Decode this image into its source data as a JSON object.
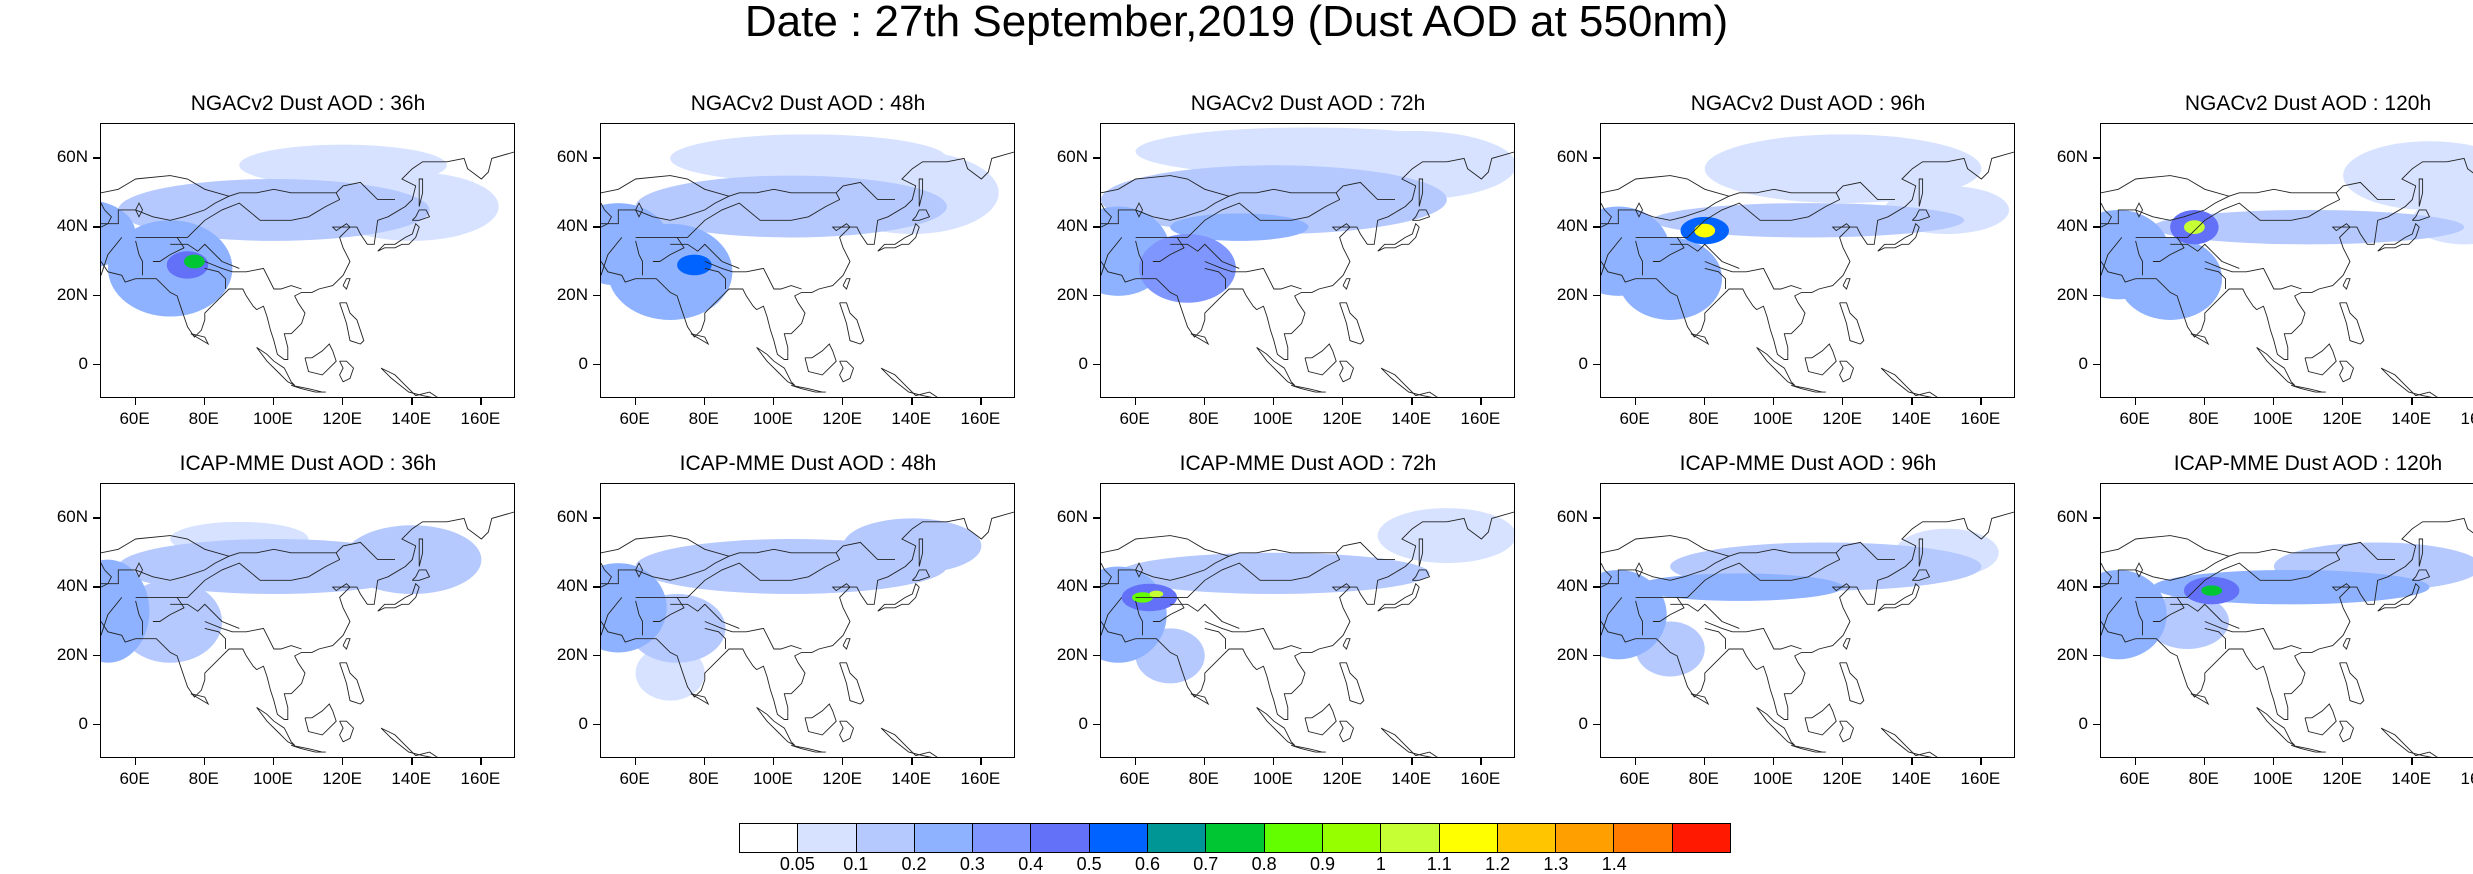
{
  "figure": {
    "title": "Date : 27th September,2019 (Dust AOD at 550nm)"
  },
  "axes": {
    "y_ticks": [
      "60N",
      "40N",
      "20N",
      "0"
    ],
    "y_values": [
      60,
      40,
      20,
      0
    ],
    "x_ticks": [
      "60E",
      "80E",
      "100E",
      "120E",
      "140E",
      "160E"
    ],
    "x_values": [
      60,
      80,
      100,
      120,
      140,
      160
    ],
    "lon_range": [
      50,
      170
    ],
    "lat_range": [
      -10,
      70
    ]
  },
  "panels": [
    {
      "title": "NGACv2 Dust AOD : 36h",
      "model": "NGACv2",
      "lead": "36h",
      "plumes": [
        {
          "lon": 45,
          "lat": 38,
          "rx": 15,
          "ry": 10,
          "v": 0.25
        },
        {
          "lon": 70,
          "lat": 28,
          "rx": 18,
          "ry": 14,
          "v": 0.2
        },
        {
          "lon": 100,
          "lat": 45,
          "rx": 45,
          "ry": 9,
          "v": 0.12
        },
        {
          "lon": 140,
          "lat": 46,
          "rx": 25,
          "ry": 10,
          "v": 0.08
        },
        {
          "lon": 77,
          "lat": 30,
          "rx": 3,
          "ry": 2,
          "v": 0.72
        },
        {
          "lon": 75,
          "lat": 29,
          "rx": 6,
          "ry": 4,
          "v": 0.4
        },
        {
          "lon": 120,
          "lat": 58,
          "rx": 30,
          "ry": 6,
          "v": 0.06
        }
      ]
    },
    {
      "title": "NGACv2 Dust AOD : 48h",
      "model": "NGACv2",
      "lead": "48h",
      "plumes": [
        {
          "lon": 55,
          "lat": 35,
          "rx": 15,
          "ry": 12,
          "v": 0.25
        },
        {
          "lon": 70,
          "lat": 27,
          "rx": 18,
          "ry": 14,
          "v": 0.22
        },
        {
          "lon": 105,
          "lat": 46,
          "rx": 45,
          "ry": 9,
          "v": 0.12
        },
        {
          "lon": 140,
          "lat": 50,
          "rx": 25,
          "ry": 12,
          "v": 0.08
        },
        {
          "lon": 77,
          "lat": 29,
          "rx": 5,
          "ry": 3,
          "v": 0.5
        },
        {
          "lon": 110,
          "lat": 60,
          "rx": 40,
          "ry": 7,
          "v": 0.06
        }
      ]
    },
    {
      "title": "NGACv2 Dust AOD : 72h",
      "model": "NGACv2",
      "lead": "72h",
      "plumes": [
        {
          "lon": 55,
          "lat": 33,
          "rx": 15,
          "ry": 13,
          "v": 0.25
        },
        {
          "lon": 75,
          "lat": 28,
          "rx": 14,
          "ry": 10,
          "v": 0.35
        },
        {
          "lon": 100,
          "lat": 48,
          "rx": 50,
          "ry": 10,
          "v": 0.12
        },
        {
          "lon": 140,
          "lat": 58,
          "rx": 30,
          "ry": 10,
          "v": 0.08
        },
        {
          "lon": 90,
          "lat": 40,
          "rx": 20,
          "ry": 4,
          "v": 0.2
        },
        {
          "lon": 110,
          "lat": 62,
          "rx": 50,
          "ry": 7,
          "v": 0.06
        }
      ]
    },
    {
      "title": "NGACv2 Dust AOD : 96h",
      "model": "NGACv2",
      "lead": "96h",
      "plumes": [
        {
          "lon": 55,
          "lat": 33,
          "rx": 15,
          "ry": 13,
          "v": 0.25
        },
        {
          "lon": 70,
          "lat": 25,
          "rx": 15,
          "ry": 12,
          "v": 0.2
        },
        {
          "lon": 80,
          "lat": 39,
          "rx": 3,
          "ry": 2,
          "v": 1.1
        },
        {
          "lon": 80,
          "lat": 39,
          "rx": 7,
          "ry": 4,
          "v": 0.5
        },
        {
          "lon": 110,
          "lat": 42,
          "rx": 45,
          "ry": 5,
          "v": 0.15
        },
        {
          "lon": 120,
          "lat": 57,
          "rx": 40,
          "ry": 10,
          "v": 0.08
        },
        {
          "lon": 150,
          "lat": 45,
          "rx": 18,
          "ry": 7,
          "v": 0.08
        }
      ]
    },
    {
      "title": "NGACv2 Dust AOD : 120h",
      "model": "NGACv2",
      "lead": "120h",
      "plumes": [
        {
          "lon": 55,
          "lat": 32,
          "rx": 15,
          "ry": 13,
          "v": 0.25
        },
        {
          "lon": 70,
          "lat": 25,
          "rx": 15,
          "ry": 12,
          "v": 0.2
        },
        {
          "lon": 77,
          "lat": 40,
          "rx": 3,
          "ry": 2,
          "v": 1.0
        },
        {
          "lon": 77,
          "lat": 40,
          "rx": 7,
          "ry": 5,
          "v": 0.45
        },
        {
          "lon": 110,
          "lat": 40,
          "rx": 45,
          "ry": 5,
          "v": 0.15
        },
        {
          "lon": 145,
          "lat": 55,
          "rx": 25,
          "ry": 10,
          "v": 0.08
        },
        {
          "lon": 155,
          "lat": 42,
          "rx": 15,
          "ry": 7,
          "v": 0.08
        }
      ]
    },
    {
      "title": "ICAP-MME Dust AOD : 36h",
      "model": "ICAP-MME",
      "lead": "36h",
      "plumes": [
        {
          "lon": 52,
          "lat": 33,
          "rx": 12,
          "ry": 15,
          "v": 0.25
        },
        {
          "lon": 70,
          "lat": 30,
          "rx": 15,
          "ry": 12,
          "v": 0.15
        },
        {
          "lon": 100,
          "lat": 46,
          "rx": 45,
          "ry": 8,
          "v": 0.1
        },
        {
          "lon": 140,
          "lat": 48,
          "rx": 20,
          "ry": 10,
          "v": 0.12
        },
        {
          "lon": 90,
          "lat": 54,
          "rx": 20,
          "ry": 5,
          "v": 0.06
        }
      ]
    },
    {
      "title": "ICAP-MME Dust AOD : 48h",
      "model": "ICAP-MME",
      "lead": "48h",
      "plumes": [
        {
          "lon": 55,
          "lat": 34,
          "rx": 14,
          "ry": 13,
          "v": 0.25
        },
        {
          "lon": 72,
          "lat": 28,
          "rx": 14,
          "ry": 10,
          "v": 0.15
        },
        {
          "lon": 105,
          "lat": 46,
          "rx": 45,
          "ry": 8,
          "v": 0.1
        },
        {
          "lon": 140,
          "lat": 52,
          "rx": 20,
          "ry": 8,
          "v": 0.1
        },
        {
          "lon": 70,
          "lat": 15,
          "rx": 10,
          "ry": 8,
          "v": 0.08
        }
      ]
    },
    {
      "title": "ICAP-MME Dust AOD : 72h",
      "model": "ICAP-MME",
      "lead": "72h",
      "plumes": [
        {
          "lon": 55,
          "lat": 32,
          "rx": 14,
          "ry": 14,
          "v": 0.25
        },
        {
          "lon": 62,
          "lat": 37,
          "rx": 3,
          "ry": 1.5,
          "v": 0.85
        },
        {
          "lon": 66,
          "lat": 38,
          "rx": 2,
          "ry": 1,
          "v": 1.05
        },
        {
          "lon": 64,
          "lat": 37,
          "rx": 8,
          "ry": 4,
          "v": 0.45
        },
        {
          "lon": 100,
          "lat": 44,
          "rx": 45,
          "ry": 6,
          "v": 0.12
        },
        {
          "lon": 150,
          "lat": 55,
          "rx": 20,
          "ry": 8,
          "v": 0.06
        },
        {
          "lon": 70,
          "lat": 20,
          "rx": 10,
          "ry": 8,
          "v": 0.1
        }
      ]
    },
    {
      "title": "ICAP-MME Dust AOD : 96h",
      "model": "ICAP-MME",
      "lead": "96h",
      "plumes": [
        {
          "lon": 55,
          "lat": 32,
          "rx": 14,
          "ry": 13,
          "v": 0.25
        },
        {
          "lon": 90,
          "lat": 40,
          "rx": 30,
          "ry": 4,
          "v": 0.25
        },
        {
          "lon": 115,
          "lat": 46,
          "rx": 45,
          "ry": 7,
          "v": 0.12
        },
        {
          "lon": 150,
          "lat": 50,
          "rx": 15,
          "ry": 7,
          "v": 0.08
        },
        {
          "lon": 70,
          "lat": 22,
          "rx": 10,
          "ry": 8,
          "v": 0.1
        }
      ]
    },
    {
      "title": "ICAP-MME Dust AOD : 120h",
      "model": "ICAP-MME",
      "lead": "120h",
      "plumes": [
        {
          "lon": 55,
          "lat": 32,
          "rx": 14,
          "ry": 13,
          "v": 0.25
        },
        {
          "lon": 82,
          "lat": 39,
          "rx": 3,
          "ry": 1.5,
          "v": 0.75
        },
        {
          "lon": 82,
          "lat": 39,
          "rx": 8,
          "ry": 4,
          "v": 0.45
        },
        {
          "lon": 105,
          "lat": 40,
          "rx": 40,
          "ry": 5,
          "v": 0.2
        },
        {
          "lon": 130,
          "lat": 46,
          "rx": 30,
          "ry": 7,
          "v": 0.1
        },
        {
          "lon": 75,
          "lat": 30,
          "rx": 12,
          "ry": 8,
          "v": 0.15
        }
      ]
    }
  ],
  "colorbar": {
    "labels": [
      "0.05",
      "0.1",
      "0.2",
      "0.3",
      "0.4",
      "0.5",
      "0.6",
      "0.7",
      "0.8",
      "0.9",
      "1",
      "1.1",
      "1.2",
      "1.3",
      "1.4"
    ],
    "thresholds": [
      0.05,
      0.1,
      0.2,
      0.3,
      0.4,
      0.5,
      0.6,
      0.7,
      0.8,
      0.9,
      1,
      1.1,
      1.2,
      1.3,
      1.4
    ],
    "colors": [
      "#ffffff",
      "#d6e2ff",
      "#b5c9ff",
      "#8eb2ff",
      "#7f96ff",
      "#6370f8",
      "#0063ff",
      "#009696",
      "#00c633",
      "#63ff00",
      "#96ff00",
      "#c6ff33",
      "#ffff00",
      "#ffc600",
      "#ffa000",
      "#ff7c00",
      "#ff1900"
    ]
  }
}
